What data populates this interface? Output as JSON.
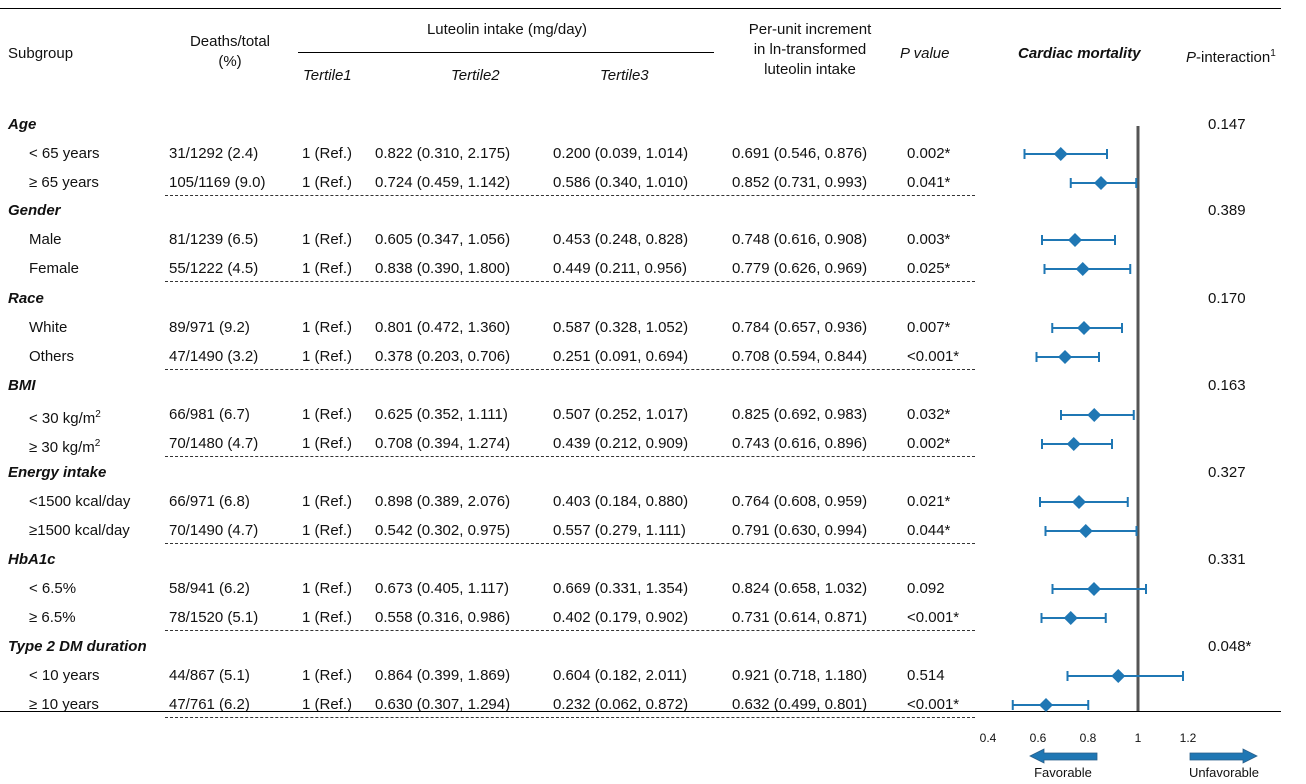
{
  "header": {
    "subgroup": "Subgroup",
    "deaths_total_l1": "Deaths/total",
    "deaths_total_l2": "(%)",
    "luteolin_intake": "Luteolin intake (mg/day)",
    "tertile1": "Tertile1",
    "tertile2": "Tertile2",
    "tertile3": "Tertile3",
    "per_unit_l1": "Per-unit increment",
    "per_unit_l2": "in ln-transformed",
    "per_unit_l3": "luteolin intake",
    "p_value": "P value",
    "cardiac_mortality": "Cardiac mortality",
    "p_interaction_p": "P",
    "p_interaction_rest": "-interaction",
    "p_interaction_sup": "1"
  },
  "groups": [
    {
      "title": "Age",
      "p_interaction": "0.147",
      "rows": [
        {
          "label": "< 65 years",
          "deaths": "31/1292 (2.4)",
          "t1": "1 (Ref.)",
          "t2": "0.822 (0.310, 2.175)",
          "t3": "0.200 (0.039, 1.014)",
          "per_unit": "0.691 (0.546, 0.876)",
          "p": "0.002*"
        },
        {
          "label": "≥ 65 years",
          "deaths": "105/1169 (9.0)",
          "t1": "1 (Ref.)",
          "t2": "0.724 (0.459, 1.142)",
          "t3": "0.586 (0.340, 1.010)",
          "per_unit": "0.852 (0.731, 0.993)",
          "p": "0.041*"
        }
      ]
    },
    {
      "title": "Gender",
      "p_interaction": "0.389",
      "rows": [
        {
          "label": "Male",
          "deaths": "81/1239 (6.5)",
          "t1": "1 (Ref.)",
          "t2": "0.605 (0.347, 1.056)",
          "t3": "0.453 (0.248, 0.828)",
          "per_unit": "0.748 (0.616, 0.908)",
          "p": "0.003*"
        },
        {
          "label": "Female",
          "deaths": "55/1222 (4.5)",
          "t1": "1 (Ref.)",
          "t2": "0.838 (0.390, 1.800)",
          "t3": "0.449 (0.211, 0.956)",
          "per_unit": "0.779 (0.626, 0.969)",
          "p": "0.025*"
        }
      ]
    },
    {
      "title": "Race",
      "p_interaction": "0.170",
      "rows": [
        {
          "label": "White",
          "deaths": "89/971 (9.2)",
          "t1": "1 (Ref.)",
          "t2": "0.801 (0.472, 1.360)",
          "t3": "0.587 (0.328, 1.052)",
          "per_unit": "0.784 (0.657, 0.936)",
          "p": "0.007*"
        },
        {
          "label": "Others",
          "deaths": "47/1490 (3.2)",
          "t1": "1 (Ref.)",
          "t2": "0.378 (0.203, 0.706)",
          "t3": "0.251 (0.091, 0.694)",
          "per_unit": "0.708 (0.594, 0.844)",
          "p": "<0.001*"
        }
      ]
    },
    {
      "title": "BMI",
      "p_interaction": "0.163",
      "rows": [
        {
          "label": "< 30 kg/m",
          "label_sup": "2",
          "deaths": "66/981 (6.7)",
          "t1": "1 (Ref.)",
          "t2": "0.625 (0.352, 1.111)",
          "t3": "0.507 (0.252, 1.017)",
          "per_unit": "0.825 (0.692, 0.983)",
          "p": "0.032*"
        },
        {
          "label": "≥ 30 kg/m",
          "label_sup": "2",
          "deaths": "70/1480 (4.7)",
          "t1": "1 (Ref.)",
          "t2": "0.708 (0.394, 1.274)",
          "t3": "0.439 (0.212, 0.909)",
          "per_unit": "0.743 (0.616, 0.896)",
          "p": "0.002*"
        }
      ]
    },
    {
      "title": "Energy intake",
      "p_interaction": "0.327",
      "rows": [
        {
          "label": "<1500 kcal/day",
          "deaths": "66/971 (6.8)",
          "t1": "1 (Ref.)",
          "t2": "0.898 (0.389, 2.076)",
          "t3": "0.403 (0.184, 0.880)",
          "per_unit": "0.764 (0.608, 0.959)",
          "p": "0.021*"
        },
        {
          "label": "≥1500 kcal/day",
          "deaths": "70/1490 (4.7)",
          "t1": "1 (Ref.)",
          "t2": "0.542 (0.302, 0.975)",
          "t3": "0.557 (0.279, 1.111)",
          "per_unit": "0.791 (0.630, 0.994)",
          "p": "0.044*"
        }
      ]
    },
    {
      "title": "HbA1c",
      "p_interaction": "0.331",
      "rows": [
        {
          "label": "< 6.5%",
          "deaths": "58/941 (6.2)",
          "t1": "1 (Ref.)",
          "t2": "0.673 (0.405, 1.117)",
          "t3": "0.669 (0.331, 1.354)",
          "per_unit": "0.824 (0.658, 1.032)",
          "p": "0.092"
        },
        {
          "label": "≥ 6.5%",
          "deaths": "78/1520 (5.1)",
          "t1": "1 (Ref.)",
          "t2": "0.558 (0.316, 0.986)",
          "t3": "0.402 (0.179, 0.902)",
          "per_unit": "0.731 (0.614, 0.871)",
          "p": "<0.001*"
        }
      ]
    },
    {
      "title": "Type 2 DM duration",
      "p_interaction": "0.048*",
      "rows": [
        {
          "label": "< 10 years",
          "deaths": "44/867 (5.1)",
          "t1": "1 (Ref.)",
          "t2": "0.864 (0.399, 1.869)",
          "t3": "0.604 (0.182, 2.011)",
          "per_unit": "0.921 (0.718, 1.180)",
          "p": "0.514"
        },
        {
          "label": "≥ 10 years",
          "deaths": "47/761 (6.2)",
          "t1": "1 (Ref.)",
          "t2": "0.630 (0.307, 1.294)",
          "t3": "0.232 (0.062, 0.872)",
          "per_unit": "0.632 (0.499, 0.801)",
          "p": "<0.001*"
        }
      ]
    }
  ],
  "chart_data": {
    "type": "forest",
    "title": "Cardiac mortality",
    "xlim": [
      0.4,
      1.2
    ],
    "xticks": [
      0.4,
      0.6,
      0.8,
      1,
      1.2
    ],
    "xtick_labels": [
      "0.4",
      "0.6",
      "0.8",
      "1",
      "1.2"
    ],
    "reference_line": 1,
    "favorable_label": "Favorable",
    "unfavorable_label": "Unfavorable",
    "marker_color": "#1f77b4",
    "points": [
      {
        "group": "Age",
        "label": "< 65 years",
        "est": 0.691,
        "lo": 0.546,
        "hi": 0.876
      },
      {
        "group": "Age",
        "label": "≥ 65 years",
        "est": 0.852,
        "lo": 0.731,
        "hi": 0.993
      },
      {
        "group": "Gender",
        "label": "Male",
        "est": 0.748,
        "lo": 0.616,
        "hi": 0.908
      },
      {
        "group": "Gender",
        "label": "Female",
        "est": 0.779,
        "lo": 0.626,
        "hi": 0.969
      },
      {
        "group": "Race",
        "label": "White",
        "est": 0.784,
        "lo": 0.657,
        "hi": 0.936
      },
      {
        "group": "Race",
        "label": "Others",
        "est": 0.708,
        "lo": 0.594,
        "hi": 0.844
      },
      {
        "group": "BMI",
        "label": "< 30 kg/m2",
        "est": 0.825,
        "lo": 0.692,
        "hi": 0.983
      },
      {
        "group": "BMI",
        "label": "≥ 30 kg/m2",
        "est": 0.743,
        "lo": 0.616,
        "hi": 0.896
      },
      {
        "group": "Energy intake",
        "label": "<1500 kcal/day",
        "est": 0.764,
        "lo": 0.608,
        "hi": 0.959
      },
      {
        "group": "Energy intake",
        "label": "≥1500 kcal/day",
        "est": 0.791,
        "lo": 0.63,
        "hi": 0.994
      },
      {
        "group": "HbA1c",
        "label": "< 6.5%",
        "est": 0.824,
        "lo": 0.658,
        "hi": 1.032
      },
      {
        "group": "HbA1c",
        "label": "≥ 6.5%",
        "est": 0.731,
        "lo": 0.614,
        "hi": 0.871
      },
      {
        "group": "Type 2 DM duration",
        "label": "< 10 years",
        "est": 0.921,
        "lo": 0.718,
        "hi": 1.18
      },
      {
        "group": "Type 2 DM duration",
        "label": "≥ 10 years",
        "est": 0.632,
        "lo": 0.499,
        "hi": 0.801
      }
    ]
  }
}
